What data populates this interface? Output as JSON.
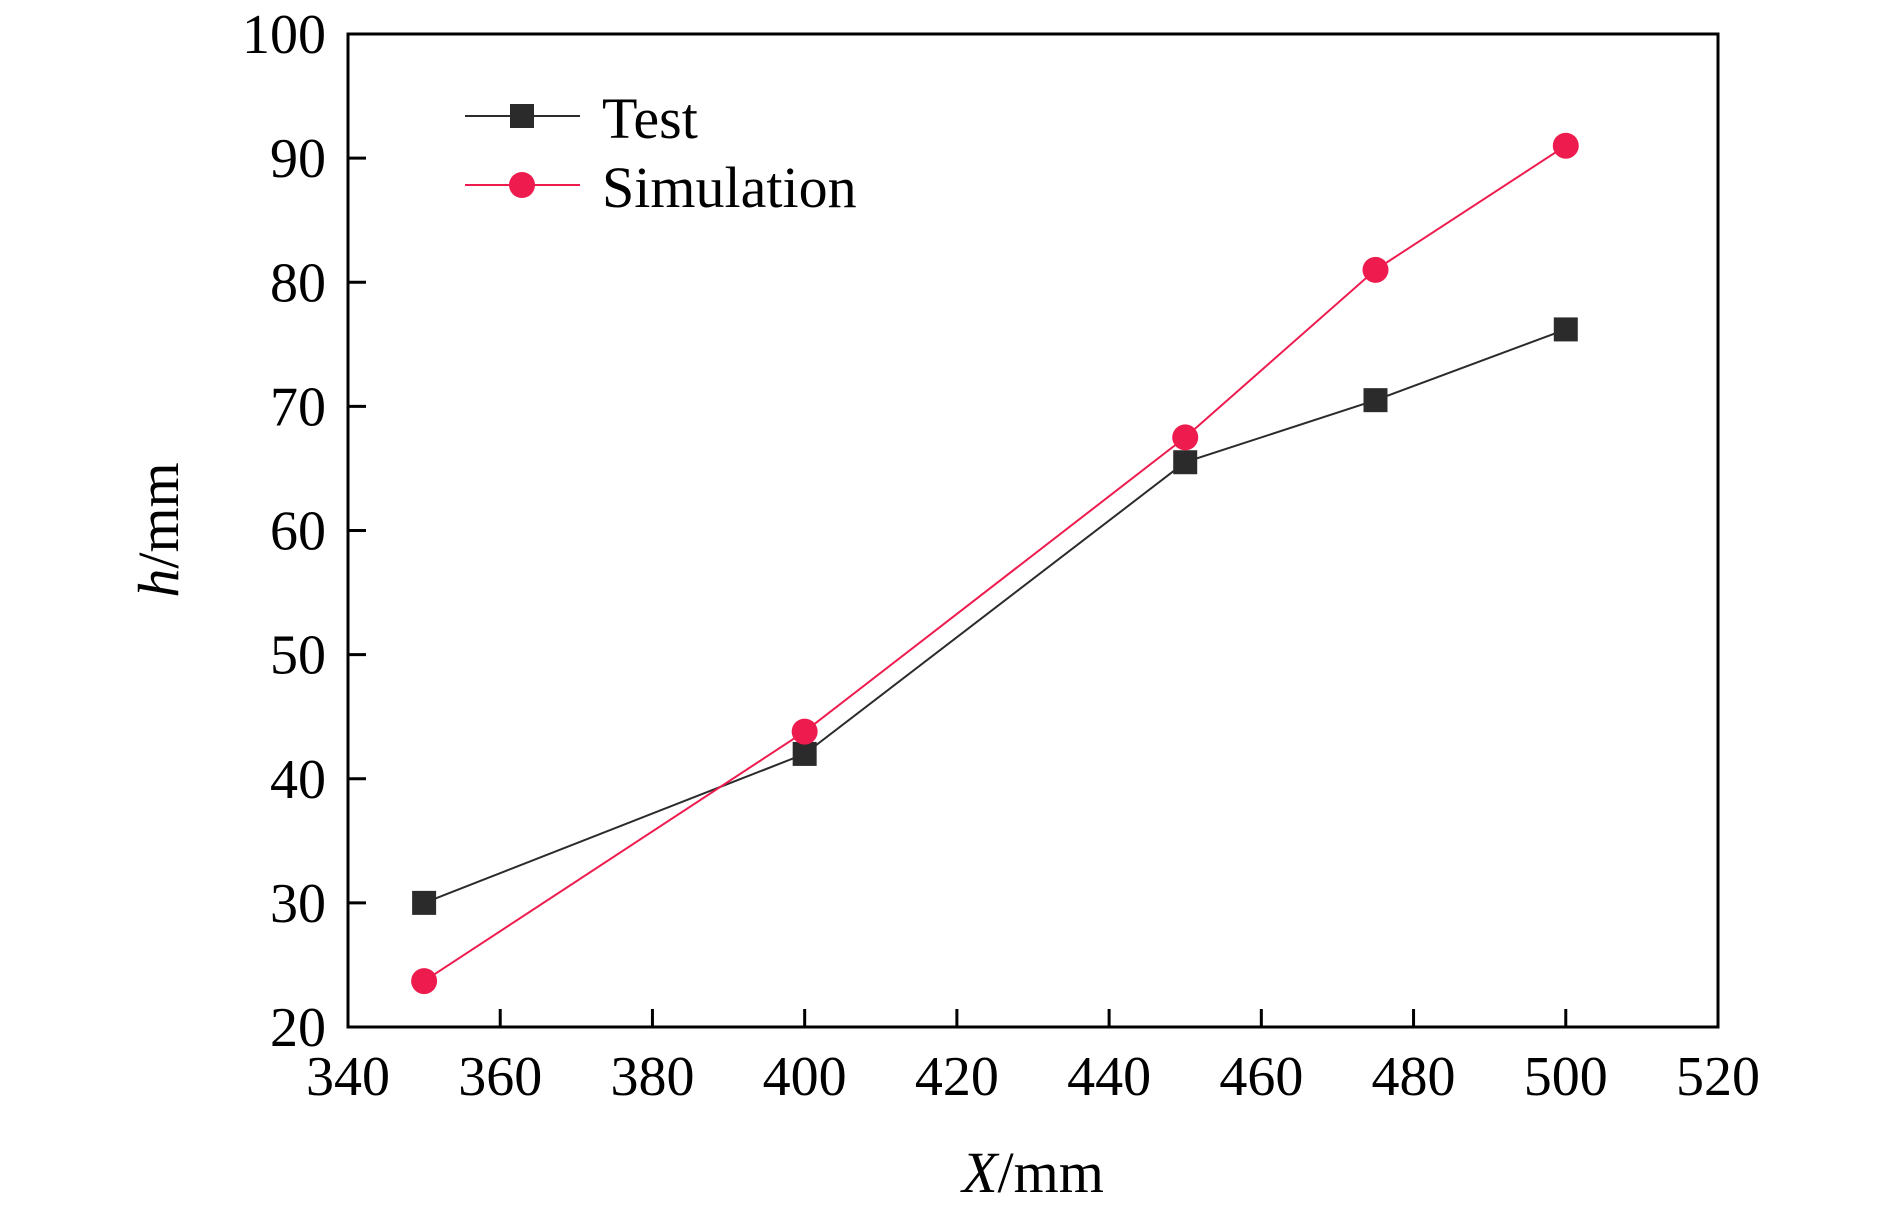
{
  "chart_data": {
    "type": "line",
    "title": "",
    "xlabel_var": "X",
    "xlabel_unit": "/mm",
    "ylabel_var": "h",
    "ylabel_unit": "/mm",
    "xlim": [
      340,
      520
    ],
    "ylim": [
      20,
      100
    ],
    "xticks": [
      340,
      360,
      380,
      400,
      420,
      440,
      460,
      480,
      500,
      520
    ],
    "yticks": [
      20,
      30,
      40,
      50,
      60,
      70,
      80,
      90,
      100
    ],
    "grid": false,
    "legend_position": "top-left",
    "series": [
      {
        "name": "Test",
        "marker": "square",
        "color": "#2b2b2b",
        "x": [
          350,
          400,
          450,
          475,
          500
        ],
        "y": [
          30.0,
          42.0,
          65.5,
          70.5,
          76.2
        ]
      },
      {
        "name": "Simulation",
        "marker": "circle",
        "color": "#ee1c4e",
        "x": [
          350,
          400,
          450,
          475,
          500
        ],
        "y": [
          23.7,
          43.8,
          67.5,
          81.0,
          91.0
        ]
      }
    ]
  }
}
